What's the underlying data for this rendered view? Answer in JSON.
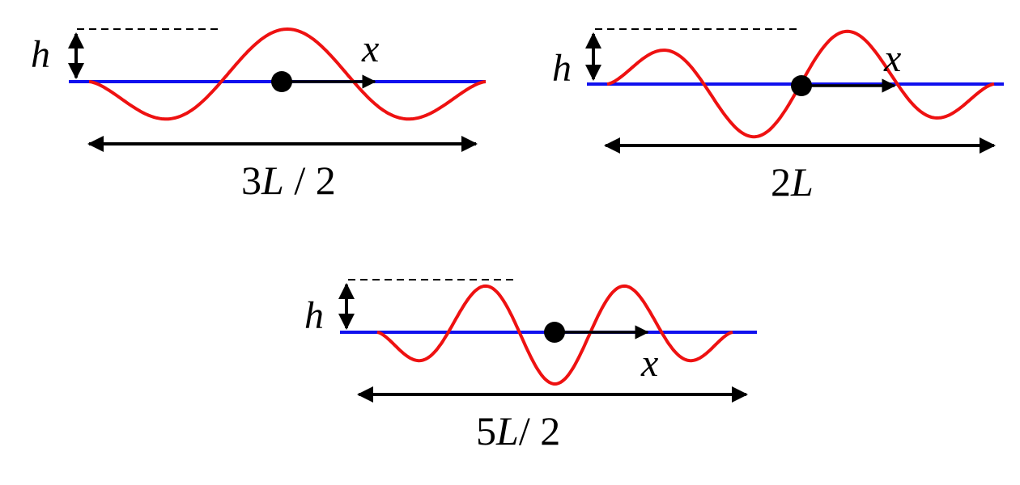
{
  "colors": {
    "baseline": "#1010ee",
    "wave": "#ee1111",
    "ink": "#000000",
    "background": "#ffffff"
  },
  "diagrams": [
    {
      "id": "three-halves",
      "height_label": "h",
      "axis_label": "x",
      "length_label": {
        "pre": "3",
        "var": "L",
        "post": " / 2"
      },
      "half_periods": 3
    },
    {
      "id": "two",
      "height_label": "h",
      "axis_label": "x",
      "length_label": {
        "pre": "2",
        "var": "L",
        "post": ""
      },
      "half_periods": 4
    },
    {
      "id": "five-halves",
      "height_label": "h",
      "axis_label": "x",
      "length_label": {
        "pre": "5",
        "var": "L",
        "post": "/ 2"
      },
      "half_periods": 5
    }
  ]
}
